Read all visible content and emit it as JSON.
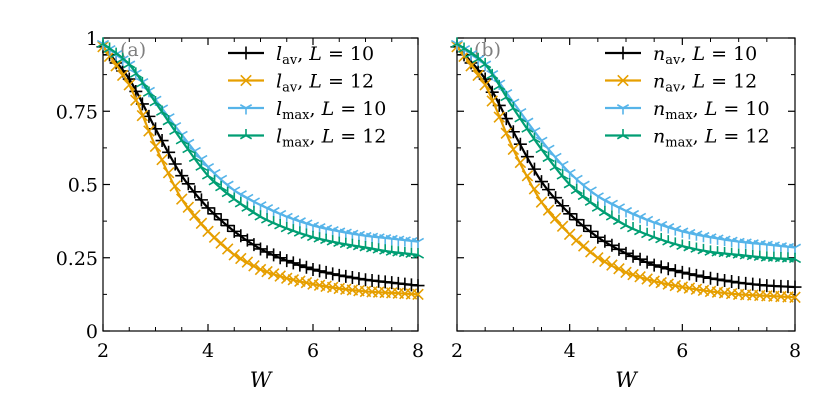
{
  "chart_data": [
    {
      "type": "line",
      "panel_label": "(a)",
      "xlabel": "W",
      "ylabel": "",
      "xlim": [
        2,
        8
      ],
      "ylim": [
        0,
        1
      ],
      "xticks": [
        2,
        4,
        6,
        8
      ],
      "xtick_labels": [
        "2",
        "4",
        "6",
        "8"
      ],
      "yticks": [
        0,
        0.25,
        0.5,
        0.75,
        1
      ],
      "ytick_labels": [
        "0",
        "0.25",
        "0.5",
        "0.75",
        "1"
      ],
      "legend_position": "top-right",
      "x": [
        2.0,
        2.5,
        3.0,
        3.5,
        4.0,
        4.5,
        5.0,
        5.5,
        6.0,
        6.5,
        7.0,
        7.5,
        8.0
      ],
      "series": [
        {
          "name": "l_av, L = 10",
          "symbol": "l",
          "sub": "av",
          "L": "10",
          "marker": "plus",
          "color": "#000000",
          "values": [
            0.97,
            0.86,
            0.69,
            0.53,
            0.42,
            0.34,
            0.28,
            0.24,
            0.21,
            0.19,
            0.175,
            0.165,
            0.155
          ]
        },
        {
          "name": "l_av, L = 12",
          "symbol": "l",
          "sub": "av",
          "L": "12",
          "marker": "x",
          "color": "#e69f00",
          "values": [
            0.97,
            0.84,
            0.63,
            0.45,
            0.34,
            0.26,
            0.21,
            0.18,
            0.16,
            0.145,
            0.135,
            0.13,
            0.125
          ]
        },
        {
          "name": "l_max, L = 10",
          "symbol": "l",
          "sub": "max",
          "L": "10",
          "marker": "tri_down",
          "color": "#56b4e9",
          "values": [
            0.98,
            0.91,
            0.79,
            0.67,
            0.56,
            0.48,
            0.43,
            0.39,
            0.36,
            0.34,
            0.325,
            0.315,
            0.305
          ]
        },
        {
          "name": "l_max, L = 12",
          "symbol": "l",
          "sub": "max",
          "L": "12",
          "marker": "tri_up",
          "color": "#009e73",
          "values": [
            0.98,
            0.91,
            0.78,
            0.65,
            0.53,
            0.45,
            0.39,
            0.35,
            0.32,
            0.3,
            0.285,
            0.27,
            0.26
          ]
        }
      ]
    },
    {
      "type": "line",
      "panel_label": "(b)",
      "xlabel": "W",
      "ylabel": "",
      "xlim": [
        2,
        8
      ],
      "ylim": [
        0,
        1
      ],
      "xticks": [
        2,
        4,
        6,
        8
      ],
      "xtick_labels": [
        "2",
        "4",
        "6",
        "8"
      ],
      "yticks": [
        0,
        0.25,
        0.5,
        0.75,
        1
      ],
      "ytick_labels": [
        "",
        "",
        "",
        "",
        ""
      ],
      "legend_position": "top-right",
      "x": [
        2.0,
        2.5,
        3.0,
        3.5,
        4.0,
        4.5,
        5.0,
        5.5,
        6.0,
        6.5,
        7.0,
        7.5,
        8.0
      ],
      "series": [
        {
          "name": "n_av, L = 10",
          "symbol": "n",
          "sub": "av",
          "L": "10",
          "marker": "plus",
          "color": "#000000",
          "values": [
            0.97,
            0.86,
            0.68,
            0.51,
            0.4,
            0.32,
            0.265,
            0.225,
            0.2,
            0.18,
            0.165,
            0.155,
            0.15
          ]
        },
        {
          "name": "n_av, L = 12",
          "symbol": "n",
          "sub": "av",
          "L": "12",
          "marker": "x",
          "color": "#e69f00",
          "values": [
            0.97,
            0.84,
            0.62,
            0.44,
            0.33,
            0.25,
            0.2,
            0.17,
            0.15,
            0.135,
            0.125,
            0.12,
            0.115
          ]
        },
        {
          "name": "n_max, L = 10",
          "symbol": "n",
          "sub": "max",
          "L": "10",
          "marker": "tri_down",
          "color": "#56b4e9",
          "values": [
            0.98,
            0.91,
            0.78,
            0.65,
            0.54,
            0.46,
            0.41,
            0.37,
            0.34,
            0.32,
            0.305,
            0.295,
            0.285
          ]
        },
        {
          "name": "n_max, L = 12",
          "symbol": "n",
          "sub": "max",
          "L": "12",
          "marker": "tri_up",
          "color": "#009e73",
          "values": [
            0.98,
            0.91,
            0.76,
            0.62,
            0.5,
            0.42,
            0.36,
            0.32,
            0.29,
            0.27,
            0.26,
            0.25,
            0.245
          ]
        }
      ]
    }
  ]
}
